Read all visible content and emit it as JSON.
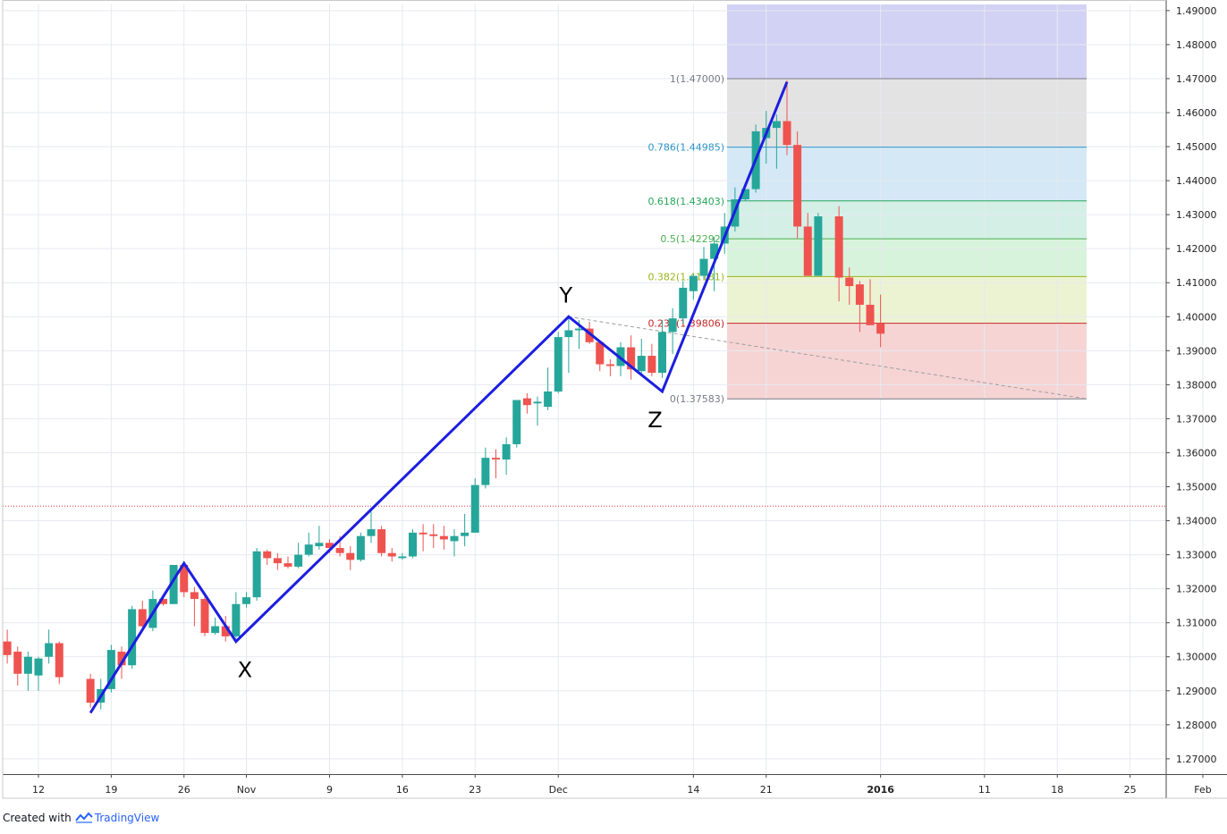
{
  "chart_data": {
    "type": "candlestick",
    "yaxis": {
      "ylim": [
        1.2655,
        1.4918
      ],
      "ticks": [
        "1.27000",
        "1.28000",
        "1.29000",
        "1.30000",
        "1.31000",
        "1.32000",
        "1.33000",
        "1.34000",
        "1.35000",
        "1.36000",
        "1.37000",
        "1.38000",
        "1.39000",
        "1.40000",
        "1.41000",
        "1.42000",
        "1.43000",
        "1.44000",
        "1.45000",
        "1.46000",
        "1.47000",
        "1.48000",
        "1.49000"
      ],
      "position": "right",
      "grid": true
    },
    "xaxis": {
      "grid": true,
      "ticks": [
        {
          "label": "12",
          "day": 0
        },
        {
          "label": "19",
          "day": 7
        },
        {
          "label": "26",
          "day": 14
        },
        {
          "label": "Nov",
          "day": 20
        },
        {
          "label": "9",
          "day": 28
        },
        {
          "label": "16",
          "day": 35
        },
        {
          "label": "23",
          "day": 42
        },
        {
          "label": "Dec",
          "day": 50
        },
        {
          "label": "14",
          "day": 63
        },
        {
          "label": "21",
          "day": 70
        },
        {
          "label": "2016",
          "day": 81,
          "bold": true
        },
        {
          "label": "11",
          "day": 91
        },
        {
          "label": "18",
          "day": 98
        },
        {
          "label": "25",
          "day": 105
        },
        {
          "label": "Feb",
          "day": 112
        }
      ]
    },
    "candles": [
      {
        "day": -3,
        "o": 1.3045,
        "h": 1.308,
        "l": 1.298,
        "c": 1.3005
      },
      {
        "day": -2,
        "o": 1.3015,
        "h": 1.303,
        "l": 1.2915,
        "c": 1.295
      },
      {
        "day": -1,
        "o": 1.295,
        "h": 1.3015,
        "l": 1.29,
        "c": 1.3
      },
      {
        "day": 0,
        "o": 1.2945,
        "h": 1.3,
        "l": 1.29,
        "c": 1.2995
      },
      {
        "day": 1,
        "o": 1.3,
        "h": 1.308,
        "l": 1.298,
        "c": 1.304
      },
      {
        "day": 2,
        "o": 1.304,
        "h": 1.3045,
        "l": 1.292,
        "c": 1.294
      },
      {
        "day": 5,
        "o": 1.2935,
        "h": 1.295,
        "l": 1.285,
        "c": 1.2865
      },
      {
        "day": 6,
        "o": 1.2865,
        "h": 1.2935,
        "l": 1.2845,
        "c": 1.2905
      },
      {
        "day": 7,
        "o": 1.2905,
        "h": 1.3035,
        "l": 1.2895,
        "c": 1.302
      },
      {
        "day": 8,
        "o": 1.3015,
        "h": 1.303,
        "l": 1.2935,
        "c": 1.2975
      },
      {
        "day": 9,
        "o": 1.2975,
        "h": 1.315,
        "l": 1.2965,
        "c": 1.314
      },
      {
        "day": 10,
        "o": 1.314,
        "h": 1.3165,
        "l": 1.3085,
        "c": 1.309
      },
      {
        "day": 11,
        "o": 1.3085,
        "h": 1.3195,
        "l": 1.3075,
        "c": 1.317
      },
      {
        "day": 12,
        "o": 1.317,
        "h": 1.318,
        "l": 1.315,
        "c": 1.3155
      },
      {
        "day": 13,
        "o": 1.3155,
        "h": 1.327,
        "l": 1.3155,
        "c": 1.327
      },
      {
        "day": 14,
        "o": 1.327,
        "h": 1.328,
        "l": 1.3175,
        "c": 1.319
      },
      {
        "day": 15,
        "o": 1.319,
        "h": 1.3205,
        "l": 1.309,
        "c": 1.317
      },
      {
        "day": 16,
        "o": 1.317,
        "h": 1.3185,
        "l": 1.306,
        "c": 1.307
      },
      {
        "day": 17,
        "o": 1.307,
        "h": 1.3115,
        "l": 1.3065,
        "c": 1.309
      },
      {
        "day": 18,
        "o": 1.309,
        "h": 1.312,
        "l": 1.3045,
        "c": 1.306
      },
      {
        "day": 19,
        "o": 1.306,
        "h": 1.319,
        "l": 1.3055,
        "c": 1.3155
      },
      {
        "day": 20,
        "o": 1.3155,
        "h": 1.319,
        "l": 1.3145,
        "c": 1.3175
      },
      {
        "day": 21,
        "o": 1.3175,
        "h": 1.332,
        "l": 1.3165,
        "c": 1.331
      },
      {
        "day": 22,
        "o": 1.331,
        "h": 1.3315,
        "l": 1.327,
        "c": 1.329
      },
      {
        "day": 23,
        "o": 1.329,
        "h": 1.3305,
        "l": 1.3255,
        "c": 1.3275
      },
      {
        "day": 24,
        "o": 1.3275,
        "h": 1.3295,
        "l": 1.326,
        "c": 1.3265
      },
      {
        "day": 25,
        "o": 1.3265,
        "h": 1.3335,
        "l": 1.326,
        "c": 1.33
      },
      {
        "day": 26,
        "o": 1.33,
        "h": 1.3365,
        "l": 1.3295,
        "c": 1.333
      },
      {
        "day": 27,
        "o": 1.3325,
        "h": 1.3385,
        "l": 1.3315,
        "c": 1.3335
      },
      {
        "day": 28,
        "o": 1.3335,
        "h": 1.3345,
        "l": 1.3305,
        "c": 1.332
      },
      {
        "day": 29,
        "o": 1.332,
        "h": 1.3355,
        "l": 1.3295,
        "c": 1.3305
      },
      {
        "day": 30,
        "o": 1.3305,
        "h": 1.3325,
        "l": 1.3255,
        "c": 1.3285
      },
      {
        "day": 31,
        "o": 1.3285,
        "h": 1.3365,
        "l": 1.328,
        "c": 1.3355
      },
      {
        "day": 32,
        "o": 1.3355,
        "h": 1.3435,
        "l": 1.3335,
        "c": 1.3375
      },
      {
        "day": 33,
        "o": 1.3375,
        "h": 1.3385,
        "l": 1.3295,
        "c": 1.3305
      },
      {
        "day": 34,
        "o": 1.3305,
        "h": 1.332,
        "l": 1.328,
        "c": 1.3295
      },
      {
        "day": 35,
        "o": 1.329,
        "h": 1.3305,
        "l": 1.3285,
        "c": 1.3295
      },
      {
        "day": 36,
        "o": 1.3295,
        "h": 1.3375,
        "l": 1.329,
        "c": 1.3365
      },
      {
        "day": 37,
        "o": 1.3365,
        "h": 1.339,
        "l": 1.331,
        "c": 1.336
      },
      {
        "day": 38,
        "o": 1.336,
        "h": 1.339,
        "l": 1.332,
        "c": 1.3355
      },
      {
        "day": 39,
        "o": 1.3355,
        "h": 1.3385,
        "l": 1.3315,
        "c": 1.3345
      },
      {
        "day": 40,
        "o": 1.334,
        "h": 1.3375,
        "l": 1.3295,
        "c": 1.3355
      },
      {
        "day": 41,
        "o": 1.3355,
        "h": 1.342,
        "l": 1.3325,
        "c": 1.3365
      },
      {
        "day": 42,
        "o": 1.3365,
        "h": 1.3525,
        "l": 1.3365,
        "c": 1.3505
      },
      {
        "day": 43,
        "o": 1.3505,
        "h": 1.3615,
        "l": 1.3495,
        "c": 1.3585
      },
      {
        "day": 44,
        "o": 1.3585,
        "h": 1.361,
        "l": 1.3525,
        "c": 1.358
      },
      {
        "day": 45,
        "o": 1.358,
        "h": 1.3645,
        "l": 1.3535,
        "c": 1.3625
      },
      {
        "day": 46,
        "o": 1.3625,
        "h": 1.3755,
        "l": 1.3615,
        "c": 1.3755
      },
      {
        "day": 47,
        "o": 1.376,
        "h": 1.3775,
        "l": 1.3715,
        "c": 1.374
      },
      {
        "day": 48,
        "o": 1.3745,
        "h": 1.3765,
        "l": 1.368,
        "c": 1.375
      },
      {
        "day": 49,
        "o": 1.3735,
        "h": 1.385,
        "l": 1.3725,
        "c": 1.378
      },
      {
        "day": 50,
        "o": 1.378,
        "h": 1.3955,
        "l": 1.3775,
        "c": 1.394
      },
      {
        "day": 51,
        "o": 1.394,
        "h": 1.3995,
        "l": 1.3835,
        "c": 1.396
      },
      {
        "day": 52,
        "o": 1.396,
        "h": 1.399,
        "l": 1.3905,
        "c": 1.3965
      },
      {
        "day": 53,
        "o": 1.3965,
        "h": 1.3985,
        "l": 1.392,
        "c": 1.3925
      },
      {
        "day": 54,
        "o": 1.3925,
        "h": 1.393,
        "l": 1.384,
        "c": 1.386
      },
      {
        "day": 55,
        "o": 1.386,
        "h": 1.3875,
        "l": 1.3825,
        "c": 1.3855
      },
      {
        "day": 56,
        "o": 1.3855,
        "h": 1.3925,
        "l": 1.3825,
        "c": 1.391
      },
      {
        "day": 57,
        "o": 1.391,
        "h": 1.3945,
        "l": 1.3815,
        "c": 1.3845
      },
      {
        "day": 58,
        "o": 1.384,
        "h": 1.3935,
        "l": 1.383,
        "c": 1.3885
      },
      {
        "day": 59,
        "o": 1.3885,
        "h": 1.392,
        "l": 1.3825,
        "c": 1.3835
      },
      {
        "day": 60,
        "o": 1.3835,
        "h": 1.399,
        "l": 1.382,
        "c": 1.3955
      },
      {
        "day": 61,
        "o": 1.3955,
        "h": 1.4025,
        "l": 1.389,
        "c": 1.3995
      },
      {
        "day": 62,
        "o": 1.3995,
        "h": 1.4105,
        "l": 1.398,
        "c": 1.4085
      },
      {
        "day": 63,
        "o": 1.4075,
        "h": 1.4125,
        "l": 1.405,
        "c": 1.412
      },
      {
        "day": 64,
        "o": 1.412,
        "h": 1.4205,
        "l": 1.411,
        "c": 1.417
      },
      {
        "day": 65,
        "o": 1.417,
        "h": 1.4235,
        "l": 1.4075,
        "c": 1.4215
      },
      {
        "day": 66,
        "o": 1.4215,
        "h": 1.4305,
        "l": 1.4185,
        "c": 1.4265
      },
      {
        "day": 67,
        "o": 1.4265,
        "h": 1.438,
        "l": 1.425,
        "c": 1.4345
      },
      {
        "day": 68,
        "o": 1.4345,
        "h": 1.4375,
        "l": 1.434,
        "c": 1.4375
      },
      {
        "day": 69,
        "o": 1.4375,
        "h": 1.4565,
        "l": 1.4365,
        "c": 1.4545
      },
      {
        "day": 70,
        "o": 1.4525,
        "h": 1.4605,
        "l": 1.445,
        "c": 1.4555
      },
      {
        "day": 71,
        "o": 1.4555,
        "h": 1.4595,
        "l": 1.4435,
        "c": 1.4575
      },
      {
        "day": 72,
        "o": 1.4575,
        "h": 1.4695,
        "l": 1.4475,
        "c": 1.4505
      },
      {
        "day": 73,
        "o": 1.4505,
        "h": 1.4545,
        "l": 1.423,
        "c": 1.4265
      },
      {
        "day": 74,
        "o": 1.4265,
        "h": 1.4305,
        "l": 1.412,
        "c": 1.412
      },
      {
        "day": 75,
        "o": 1.412,
        "h": 1.4305,
        "l": 1.412,
        "c": 1.4295
      },
      {
        "day": 77,
        "o": 1.4295,
        "h": 1.4325,
        "l": 1.4045,
        "c": 1.4115
      },
      {
        "day": 78,
        "o": 1.4115,
        "h": 1.4145,
        "l": 1.4035,
        "c": 1.409
      },
      {
        "day": 79,
        "o": 1.4095,
        "h": 1.4105,
        "l": 1.3955,
        "c": 1.4035
      },
      {
        "day": 80,
        "o": 1.4035,
        "h": 1.411,
        "l": 1.3975,
        "c": 1.3975
      },
      {
        "day": 81,
        "o": 1.398,
        "h": 1.4065,
        "l": 1.391,
        "c": 1.395
      }
    ],
    "fib": {
      "levels": [
        {
          "label": "1(1.47000)",
          "value": 1.47,
          "color": "#787b86"
        },
        {
          "label": "0.786(1.44985)",
          "value": 1.44985,
          "color": "#2e96c8"
        },
        {
          "label": "0.618(1.43403)",
          "value": 1.43403,
          "color": "#26a65b"
        },
        {
          "label": "0.5(1.42292)",
          "value": 1.42292,
          "color": "#4caf50"
        },
        {
          "label": "0.382(1.41181)",
          "value": 1.41181,
          "color": "#9bb41e"
        },
        {
          "label": "0.236(1.39806)",
          "value": 1.39806,
          "color": "#c62828"
        },
        {
          "label": "0(1.37583)",
          "value": 1.37583,
          "color": "#787b86"
        }
      ],
      "top_band_value": 1.4918
    },
    "waves": {
      "points": [
        {
          "label": "",
          "day": 5,
          "value": 1.2835
        },
        {
          "label": "",
          "day": 14,
          "value": 1.3275
        },
        {
          "label": "X",
          "day": 19,
          "value": 1.3045
        },
        {
          "label": "Y",
          "day": 51,
          "value": 1.4
        },
        {
          "label": "Z",
          "day": 60,
          "value": 1.378
        },
        {
          "label": "",
          "day": 72,
          "value": 1.469
        }
      ],
      "color": "#1c1ee0"
    },
    "price_line": 1.3443,
    "colors": {
      "up": "#26a69a",
      "down": "#ef5350",
      "grid": "#e6e9ef"
    }
  },
  "footer": {
    "created_with": "Created with",
    "brand": "TradingView"
  }
}
